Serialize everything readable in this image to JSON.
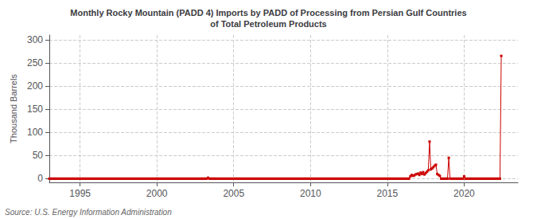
{
  "chart_data": {
    "type": "line",
    "title": "Monthly Rocky Mountain (PADD 4) Imports by PADD of Processing from Persian Gulf Countries\nof Total Petroleum Products",
    "ylabel": "Thousand Barrels",
    "annotations": [
      "Source: U.S. Energy Information Administration"
    ],
    "color": "#cc0000",
    "marker": "square",
    "grid": true,
    "xlim": [
      1993.0,
      2023.5
    ],
    "ylim": [
      -8,
      310
    ],
    "xticks": [
      1995,
      2000,
      2005,
      2010,
      2015,
      2020
    ],
    "yticks": [
      0,
      50,
      100,
      150,
      200,
      250,
      300
    ],
    "x": [
      1993.0,
      1993.083,
      1993.167,
      1993.25,
      1993.333,
      1993.417,
      1993.5,
      1993.583,
      1993.667,
      1993.75,
      1993.833,
      1993.917,
      1994.0,
      1994.083,
      1994.167,
      1994.25,
      1994.333,
      1994.417,
      1994.5,
      1994.583,
      1994.667,
      1994.75,
      1994.833,
      1994.917,
      1995.0,
      1995.083,
      1995.167,
      1995.25,
      1995.333,
      1995.417,
      1995.5,
      1995.583,
      1995.667,
      1995.75,
      1995.833,
      1995.917,
      1996.0,
      1996.083,
      1996.167,
      1996.25,
      1996.333,
      1996.417,
      1996.5,
      1996.583,
      1996.667,
      1996.75,
      1996.833,
      1996.917,
      1997.0,
      1997.083,
      1997.167,
      1997.25,
      1997.333,
      1997.417,
      1997.5,
      1997.583,
      1997.667,
      1997.75,
      1997.833,
      1997.917,
      1998.0,
      1998.083,
      1998.167,
      1998.25,
      1998.333,
      1998.417,
      1998.5,
      1998.583,
      1998.667,
      1998.75,
      1998.833,
      1998.917,
      1999.0,
      1999.083,
      1999.167,
      1999.25,
      1999.333,
      1999.417,
      1999.5,
      1999.583,
      1999.667,
      1999.75,
      1999.833,
      1999.917,
      2000.0,
      2000.083,
      2000.167,
      2000.25,
      2000.333,
      2000.417,
      2000.5,
      2000.583,
      2000.667,
      2000.75,
      2000.833,
      2000.917,
      2001.0,
      2001.083,
      2001.167,
      2001.25,
      2001.333,
      2001.417,
      2001.5,
      2001.583,
      2001.667,
      2001.75,
      2001.833,
      2001.917,
      2002.0,
      2002.083,
      2002.167,
      2002.25,
      2002.333,
      2002.417,
      2002.5,
      2002.583,
      2002.667,
      2002.75,
      2002.833,
      2002.917,
      2003.0,
      2003.083,
      2003.167,
      2003.25,
      2003.333,
      2003.417,
      2003.5,
      2003.583,
      2003.667,
      2003.75,
      2003.833,
      2003.917,
      2004.0,
      2004.083,
      2004.167,
      2004.25,
      2004.333,
      2004.417,
      2004.5,
      2004.583,
      2004.667,
      2004.75,
      2004.833,
      2004.917,
      2005.0,
      2005.083,
      2005.167,
      2005.25,
      2005.333,
      2005.417,
      2005.5,
      2005.583,
      2005.667,
      2005.75,
      2005.833,
      2005.917,
      2006.0,
      2006.083,
      2006.167,
      2006.25,
      2006.333,
      2006.417,
      2006.5,
      2006.583,
      2006.667,
      2006.75,
      2006.833,
      2006.917,
      2007.0,
      2007.083,
      2007.167,
      2007.25,
      2007.333,
      2007.417,
      2007.5,
      2007.583,
      2007.667,
      2007.75,
      2007.833,
      2007.917,
      2008.0,
      2008.083,
      2008.167,
      2008.25,
      2008.333,
      2008.417,
      2008.5,
      2008.583,
      2008.667,
      2008.75,
      2008.833,
      2008.917,
      2009.0,
      2009.083,
      2009.167,
      2009.25,
      2009.333,
      2009.417,
      2009.5,
      2009.583,
      2009.667,
      2009.75,
      2009.833,
      2009.917,
      2010.0,
      2010.083,
      2010.167,
      2010.25,
      2010.333,
      2010.417,
      2010.5,
      2010.583,
      2010.667,
      2010.75,
      2010.833,
      2010.917,
      2011.0,
      2011.083,
      2011.167,
      2011.25,
      2011.333,
      2011.417,
      2011.5,
      2011.583,
      2011.667,
      2011.75,
      2011.833,
      2011.917,
      2012.0,
      2012.083,
      2012.167,
      2012.25,
      2012.333,
      2012.417,
      2012.5,
      2012.583,
      2012.667,
      2012.75,
      2012.833,
      2012.917,
      2013.0,
      2013.083,
      2013.167,
      2013.25,
      2013.333,
      2013.417,
      2013.5,
      2013.583,
      2013.667,
      2013.75,
      2013.833,
      2013.917,
      2014.0,
      2014.083,
      2014.167,
      2014.25,
      2014.333,
      2014.417,
      2014.5,
      2014.583,
      2014.667,
      2014.75,
      2014.833,
      2014.917,
      2015.0,
      2015.083,
      2015.167,
      2015.25,
      2015.333,
      2015.417,
      2015.5,
      2015.583,
      2015.667,
      2015.75,
      2015.833,
      2015.917,
      2016.0,
      2016.083,
      2016.167,
      2016.25,
      2016.333,
      2016.417,
      2016.5,
      2016.583,
      2016.667,
      2016.75,
      2016.833,
      2016.917,
      2017.0,
      2017.083,
      2017.167,
      2017.25,
      2017.333,
      2017.417,
      2017.5,
      2017.583,
      2017.667,
      2017.75,
      2017.833,
      2017.917,
      2018.0,
      2018.083,
      2018.167,
      2018.25,
      2018.333,
      2018.417,
      2018.5,
      2018.583,
      2018.667,
      2018.75,
      2018.833,
      2018.917,
      2019.0,
      2019.083,
      2019.167,
      2019.25,
      2019.333,
      2019.417,
      2019.5,
      2019.583,
      2019.667,
      2019.75,
      2019.833,
      2019.917,
      2020.0,
      2020.083,
      2020.167,
      2020.25,
      2020.333,
      2020.417,
      2020.5,
      2020.583,
      2020.667,
      2020.75,
      2020.833,
      2020.917,
      2021.0,
      2021.083,
      2021.167,
      2021.25,
      2021.333,
      2021.417,
      2021.5,
      2021.583,
      2021.667,
      2021.75,
      2021.833,
      2021.917,
      2022.0,
      2022.083,
      2022.167,
      2022.25,
      2022.333,
      2022.417
    ],
    "values": [
      0,
      0,
      0,
      0,
      0,
      0,
      0,
      0,
      0,
      0,
      0,
      0,
      0,
      0,
      0,
      0,
      0,
      0,
      0,
      0,
      0,
      0,
      0,
      0,
      0,
      0,
      0,
      0,
      0,
      0,
      0,
      0,
      0,
      0,
      0,
      0,
      0,
      0,
      0,
      0,
      0,
      0,
      0,
      0,
      0,
      0,
      0,
      0,
      0,
      0,
      0,
      0,
      0,
      0,
      0,
      0,
      0,
      0,
      0,
      0,
      0,
      0,
      0,
      0,
      0,
      0,
      0,
      0,
      0,
      0,
      0,
      0,
      0,
      0,
      0,
      0,
      0,
      0,
      0,
      0,
      0,
      0,
      0,
      0,
      0,
      0,
      0,
      0,
      0,
      0,
      0,
      0,
      0,
      0,
      0,
      0,
      0,
      0,
      0,
      0,
      0,
      0,
      0,
      0,
      0,
      0,
      0,
      0,
      0,
      0,
      0,
      0,
      0,
      0,
      0,
      0,
      0,
      0,
      0,
      0,
      0,
      0,
      0,
      0,
      2,
      0,
      0,
      0,
      0,
      0,
      0,
      0,
      0,
      0,
      0,
      0,
      0,
      0,
      0,
      0,
      0,
      0,
      0,
      0,
      0,
      0,
      0,
      0,
      0,
      0,
      0,
      0,
      0,
      0,
      0,
      0,
      0,
      0,
      0,
      0,
      0,
      0,
      0,
      0,
      0,
      0,
      0,
      0,
      0,
      0,
      0,
      0,
      0,
      0,
      0,
      0,
      0,
      0,
      0,
      0,
      0,
      0,
      0,
      0,
      0,
      0,
      0,
      0,
      0,
      0,
      0,
      0,
      0,
      0,
      0,
      0,
      0,
      0,
      0,
      0,
      0,
      0,
      0,
      0,
      0,
      0,
      0,
      0,
      0,
      0,
      0,
      0,
      0,
      0,
      0,
      0,
      0,
      0,
      0,
      0,
      0,
      0,
      0,
      0,
      0,
      0,
      0,
      0,
      0,
      0,
      0,
      0,
      0,
      0,
      0,
      0,
      0,
      0,
      0,
      0,
      0,
      0,
      0,
      0,
      0,
      0,
      0,
      0,
      0,
      0,
      0,
      0,
      0,
      0,
      0,
      0,
      0,
      0,
      0,
      0,
      0,
      0,
      0,
      0,
      0,
      0,
      0,
      0,
      0,
      0,
      0,
      0,
      0,
      0,
      0,
      0,
      0,
      0,
      0,
      0,
      0,
      0,
      5,
      8,
      6,
      7,
      9,
      10,
      11,
      8,
      13,
      10,
      14,
      9,
      12,
      15,
      18,
      80,
      20,
      22,
      25,
      28,
      30,
      10,
      8,
      6,
      0,
      0,
      0,
      0,
      0,
      0,
      45,
      0,
      0,
      0,
      0,
      0,
      0,
      0,
      0,
      0,
      0,
      0,
      5,
      0,
      0,
      0,
      0,
      0,
      0,
      0,
      0,
      0,
      0,
      0,
      0,
      0,
      0,
      0,
      0,
      0,
      0,
      0,
      0,
      0,
      0,
      0,
      0,
      0,
      0,
      0,
      0,
      265
    ]
  }
}
